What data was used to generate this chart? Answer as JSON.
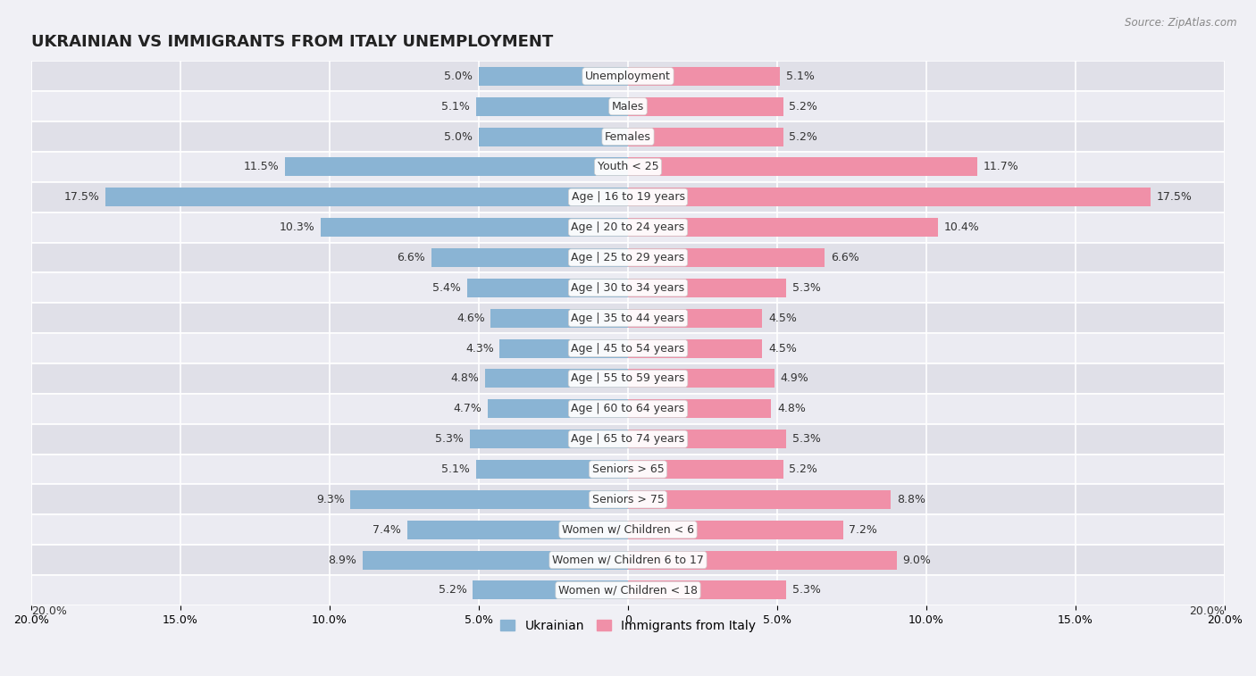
{
  "title": "UKRAINIAN VS IMMIGRANTS FROM ITALY UNEMPLOYMENT",
  "source": "Source: ZipAtlas.com",
  "categories": [
    "Unemployment",
    "Males",
    "Females",
    "Youth < 25",
    "Age | 16 to 19 years",
    "Age | 20 to 24 years",
    "Age | 25 to 29 years",
    "Age | 30 to 34 years",
    "Age | 35 to 44 years",
    "Age | 45 to 54 years",
    "Age | 55 to 59 years",
    "Age | 60 to 64 years",
    "Age | 65 to 74 years",
    "Seniors > 65",
    "Seniors > 75",
    "Women w/ Children < 6",
    "Women w/ Children 6 to 17",
    "Women w/ Children < 18"
  ],
  "ukrainian": [
    5.0,
    5.1,
    5.0,
    11.5,
    17.5,
    10.3,
    6.6,
    5.4,
    4.6,
    4.3,
    4.8,
    4.7,
    5.3,
    5.1,
    9.3,
    7.4,
    8.9,
    5.2
  ],
  "immigrants": [
    5.1,
    5.2,
    5.2,
    11.7,
    17.5,
    10.4,
    6.6,
    5.3,
    4.5,
    4.5,
    4.9,
    4.8,
    5.3,
    5.2,
    8.8,
    7.2,
    9.0,
    5.3
  ],
  "xlim": 20.0,
  "color_ukrainian": "#8ab4d4",
  "color_immigrants": "#f090a8",
  "color_bg_odd": "#e0e0e8",
  "color_bg_even": "#ebebf2",
  "bar_height": 0.62,
  "label_fontsize": 9.0,
  "category_fontsize": 9.0,
  "title_fontsize": 13,
  "legend_label_ukrainian": "Ukrainian",
  "legend_label_immigrants": "Immigrants from Italy",
  "tick_fontsize": 9.0
}
